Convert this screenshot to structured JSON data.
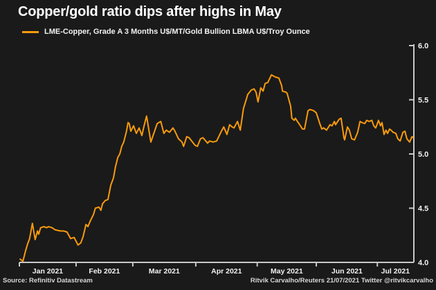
{
  "header": {
    "title": "Copper/gold ratio dips after highs in May"
  },
  "legend": {
    "label": "LME-Copper, Grade A 3 Months U$/MT/Gold Bullion LBMA U$/Troy Ounce"
  },
  "footer": {
    "source": "Source: Refinitiv Datastream",
    "credit": "Ritvik Carvalho/Reuters 21/07/2021 Twitter @ritvikcarvalho"
  },
  "colors": {
    "background": "#1a1a1a",
    "line": "#f99b0c",
    "axis": "#c9c9c9",
    "text": "#f2f2f2",
    "muted": "#d6d6d6"
  },
  "chart_data": {
    "type": "line",
    "title": "Copper/gold ratio dips after highs in May",
    "xlabel": "",
    "ylabel": "",
    "ylim": [
      4.0,
      6.0
    ],
    "x_range": [
      "2021-01-01",
      "2021-07-21"
    ],
    "grid": false,
    "legend_position": "top-left",
    "y_ticks": [
      {
        "label": "4.0",
        "value": 4.0
      },
      {
        "label": "4.5",
        "value": 4.5
      },
      {
        "label": "5.0",
        "value": 5.0
      },
      {
        "label": "5.5",
        "value": 5.5
      },
      {
        "label": "6.0",
        "value": 6.0
      }
    ],
    "x_ticks": [
      {
        "label": "Jan 2021",
        "tick": 0.0,
        "label_pos": 0.072
      },
      {
        "label": "Feb 2021",
        "tick": 0.144,
        "label_pos": 0.216
      },
      {
        "label": "Mar 2021",
        "tick": 0.288,
        "label_pos": 0.368
      },
      {
        "label": "Apr 2021",
        "tick": 0.448,
        "label_pos": 0.526
      },
      {
        "label": "May 2021",
        "tick": 0.604,
        "label_pos": 0.679
      },
      {
        "label": "Jun 2021",
        "tick": 0.754,
        "label_pos": 0.832
      },
      {
        "label": "Jul 2021",
        "tick": 0.909,
        "label_pos": 0.955
      }
    ],
    "series": [
      {
        "name": "LME-Copper, Grade A 3 Months U$/MT/Gold Bullion LBMA U$/Troy Ounce",
        "color": "#f99b0c",
        "points": [
          [
            0.002,
            4.03
          ],
          [
            0.009,
            4.01
          ],
          [
            0.016,
            4.11
          ],
          [
            0.021,
            4.17
          ],
          [
            0.026,
            4.22
          ],
          [
            0.033,
            4.36
          ],
          [
            0.04,
            4.21
          ],
          [
            0.046,
            4.29
          ],
          [
            0.049,
            4.26
          ],
          [
            0.054,
            4.32
          ],
          [
            0.062,
            4.33
          ],
          [
            0.069,
            4.32
          ],
          [
            0.074,
            4.33
          ],
          [
            0.083,
            4.32
          ],
          [
            0.091,
            4.3
          ],
          [
            0.104,
            4.29
          ],
          [
            0.112,
            4.29
          ],
          [
            0.121,
            4.28
          ],
          [
            0.13,
            4.22
          ],
          [
            0.139,
            4.23
          ],
          [
            0.149,
            4.16
          ],
          [
            0.156,
            4.18
          ],
          [
            0.162,
            4.24
          ],
          [
            0.169,
            4.35
          ],
          [
            0.174,
            4.33
          ],
          [
            0.181,
            4.39
          ],
          [
            0.188,
            4.44
          ],
          [
            0.193,
            4.5
          ],
          [
            0.202,
            4.51
          ],
          [
            0.207,
            4.48
          ],
          [
            0.211,
            4.54
          ],
          [
            0.218,
            4.57
          ],
          [
            0.225,
            4.58
          ],
          [
            0.232,
            4.71
          ],
          [
            0.239,
            4.78
          ],
          [
            0.244,
            4.88
          ],
          [
            0.25,
            4.97
          ],
          [
            0.255,
            5.0
          ],
          [
            0.26,
            5.07
          ],
          [
            0.265,
            5.11
          ],
          [
            0.272,
            5.21
          ],
          [
            0.276,
            5.29
          ],
          [
            0.279,
            5.28
          ],
          [
            0.283,
            5.21
          ],
          [
            0.29,
            5.26
          ],
          [
            0.297,
            5.19
          ],
          [
            0.304,
            5.24
          ],
          [
            0.311,
            5.17
          ],
          [
            0.316,
            5.25
          ],
          [
            0.323,
            5.35
          ],
          [
            0.334,
            5.11
          ],
          [
            0.35,
            5.28
          ],
          [
            0.359,
            5.3
          ],
          [
            0.367,
            5.19
          ],
          [
            0.373,
            5.22
          ],
          [
            0.381,
            5.2
          ],
          [
            0.39,
            5.24
          ],
          [
            0.395,
            5.21
          ],
          [
            0.404,
            5.14
          ],
          [
            0.413,
            5.11
          ],
          [
            0.417,
            5.07
          ],
          [
            0.425,
            5.16
          ],
          [
            0.431,
            5.15
          ],
          [
            0.446,
            5.08
          ],
          [
            0.452,
            5.07
          ],
          [
            0.46,
            5.14
          ],
          [
            0.466,
            5.15
          ],
          [
            0.478,
            5.1
          ],
          [
            0.483,
            5.12
          ],
          [
            0.492,
            5.11
          ],
          [
            0.501,
            5.12
          ],
          [
            0.513,
            5.21
          ],
          [
            0.519,
            5.25
          ],
          [
            0.527,
            5.18
          ],
          [
            0.534,
            5.27
          ],
          [
            0.54,
            5.25
          ],
          [
            0.545,
            5.24
          ],
          [
            0.554,
            5.3
          ],
          [
            0.561,
            5.22
          ],
          [
            0.569,
            5.42
          ],
          [
            0.575,
            5.49
          ],
          [
            0.58,
            5.55
          ],
          [
            0.589,
            5.59
          ],
          [
            0.596,
            5.6
          ],
          [
            0.601,
            5.57
          ],
          [
            0.606,
            5.48
          ],
          [
            0.613,
            5.61
          ],
          [
            0.619,
            5.58
          ],
          [
            0.624,
            5.65
          ],
          [
            0.631,
            5.66
          ],
          [
            0.64,
            5.73
          ],
          [
            0.645,
            5.72
          ],
          [
            0.65,
            5.71
          ],
          [
            0.659,
            5.7
          ],
          [
            0.666,
            5.63
          ],
          [
            0.668,
            5.58
          ],
          [
            0.677,
            5.57
          ],
          [
            0.68,
            5.56
          ],
          [
            0.689,
            5.44
          ],
          [
            0.692,
            5.33
          ],
          [
            0.698,
            5.31
          ],
          [
            0.701,
            5.33
          ],
          [
            0.706,
            5.3
          ],
          [
            0.71,
            5.28
          ],
          [
            0.719,
            5.23
          ],
          [
            0.724,
            5.23
          ],
          [
            0.733,
            5.4
          ],
          [
            0.738,
            5.41
          ],
          [
            0.747,
            5.4
          ],
          [
            0.754,
            5.38
          ],
          [
            0.763,
            5.28
          ],
          [
            0.768,
            5.23
          ],
          [
            0.773,
            5.24
          ],
          [
            0.78,
            5.22
          ],
          [
            0.789,
            5.27
          ],
          [
            0.794,
            5.26
          ],
          [
            0.8,
            5.3
          ],
          [
            0.803,
            5.27
          ],
          [
            0.812,
            5.32
          ],
          [
            0.817,
            5.33
          ],
          [
            0.824,
            5.15
          ],
          [
            0.826,
            5.13
          ],
          [
            0.833,
            5.25
          ],
          [
            0.838,
            5.22
          ],
          [
            0.844,
            5.14
          ],
          [
            0.851,
            5.13
          ],
          [
            0.859,
            5.2
          ],
          [
            0.865,
            5.3
          ],
          [
            0.87,
            5.29
          ],
          [
            0.877,
            5.28
          ],
          [
            0.882,
            5.31
          ],
          [
            0.888,
            5.3
          ],
          [
            0.895,
            5.31
          ],
          [
            0.9,
            5.26
          ],
          [
            0.905,
            5.24
          ],
          [
            0.912,
            5.31
          ],
          [
            0.917,
            5.26
          ],
          [
            0.921,
            5.29
          ],
          [
            0.926,
            5.18
          ],
          [
            0.931,
            5.22
          ],
          [
            0.935,
            5.19
          ],
          [
            0.94,
            5.23
          ],
          [
            0.944,
            5.22
          ],
          [
            0.949,
            5.2
          ],
          [
            0.956,
            5.19
          ],
          [
            0.961,
            5.14
          ],
          [
            0.967,
            5.12
          ],
          [
            0.974,
            5.2
          ],
          [
            0.979,
            5.21
          ],
          [
            0.984,
            5.14
          ],
          [
            0.991,
            5.11
          ],
          [
            0.997,
            5.16
          ],
          [
            1.0,
            5.15
          ]
        ]
      }
    ]
  }
}
